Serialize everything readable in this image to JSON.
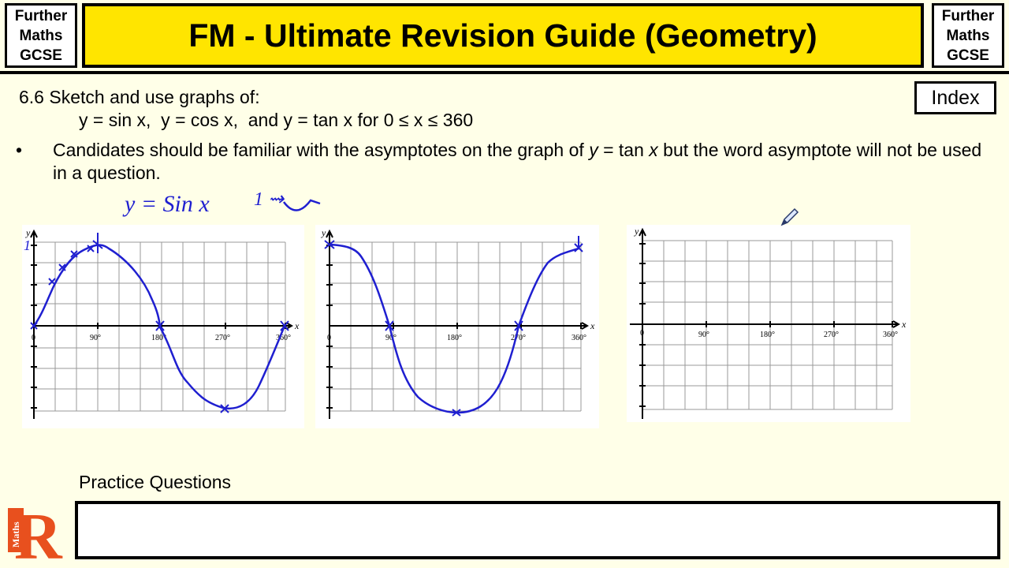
{
  "header": {
    "left_badge": [
      "Further",
      "Maths",
      "GCSE"
    ],
    "right_badge": [
      "Further",
      "Maths",
      "GCSE"
    ],
    "title": "FM - Ultimate Revision Guide (Geometry)"
  },
  "spec": {
    "title": "6.6 Sketch and use graphs of:",
    "subtitle": "y = sin x,  y = cos x,  and y = tan x for 0 ≤ x ≤ 360",
    "bullet_symbol": "•",
    "bullet_text_1": "Candidates should be familiar with the asymptotes on the graph of ",
    "bullet_y": "y",
    "bullet_eq": " = tan ",
    "bullet_x": "x",
    "bullet_text_2": " but the word asymptote will not be used in a question."
  },
  "index_button": "Index",
  "handwriting": {
    "annotation_1": "y = Sin x",
    "annotation_2": "1 ⇝"
  },
  "graphs": {
    "axis_x_label": "x",
    "axis_y_label": "y",
    "origin_label": "0",
    "tick_labels": [
      "90°",
      "180°",
      "270°",
      "360°"
    ],
    "sketch_color": "#1f1fd0",
    "graph_1_annotation": "1"
  },
  "practice": {
    "label": "Practice Questions"
  },
  "logo": {
    "letter": "R",
    "text": "Maths",
    "color": "#e8501e"
  }
}
